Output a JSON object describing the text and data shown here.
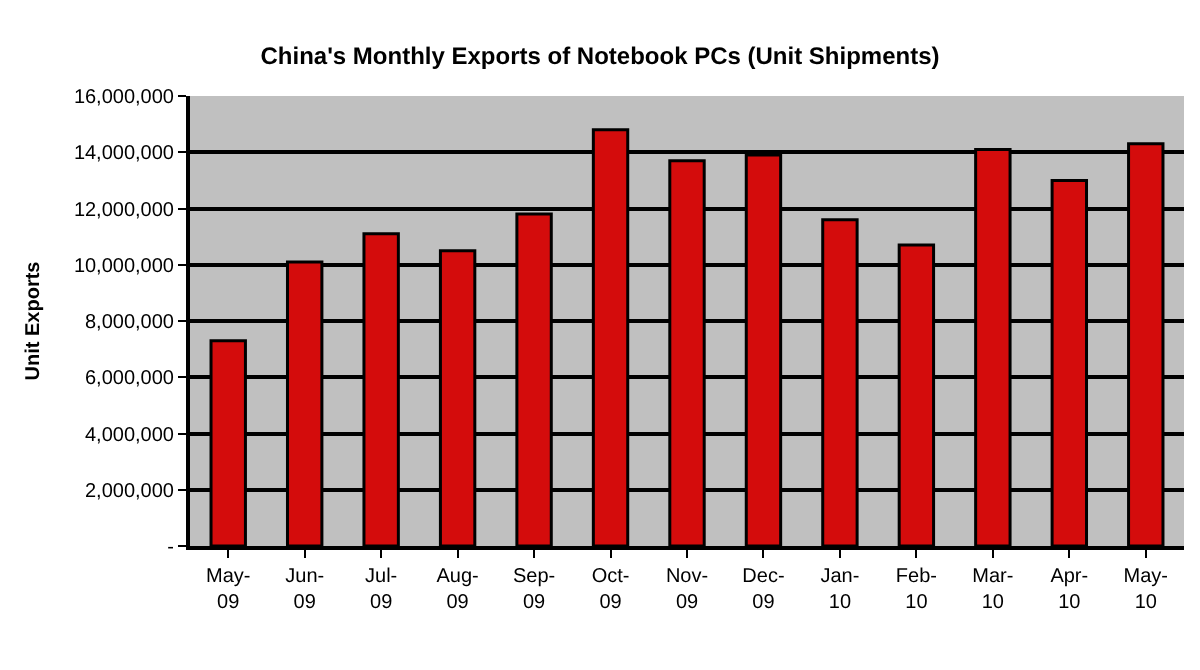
{
  "chart_data": {
    "type": "bar",
    "title": "China's Monthly Exports of Notebook PCs (Unit Shipments)",
    "ylabel": "Unit Exports",
    "categories": [
      "May-09",
      "Jun-09",
      "Jul-09",
      "Aug-09",
      "Sep-09",
      "Oct-09",
      "Nov-09",
      "Dec-09",
      "Jan-10",
      "Feb-10",
      "Mar-10",
      "Apr-10",
      "May-10"
    ],
    "series": [
      {
        "color": "#d40c0c",
        "values": [
          7300000,
          10100000,
          11100000,
          10500000,
          11800000,
          14800000,
          13700000,
          13900000,
          11600000,
          10700000,
          14100000,
          13000000,
          14300000
        ]
      }
    ],
    "ylim": [
      0,
      16000000
    ],
    "yticks": [
      {
        "value": 0,
        "label": "-"
      },
      {
        "value": 2000000,
        "label": "2,000,000"
      },
      {
        "value": 4000000,
        "label": "4,000,000"
      },
      {
        "value": 6000000,
        "label": "6,000,000"
      },
      {
        "value": 8000000,
        "label": "8,000,000"
      },
      {
        "value": 10000000,
        "label": "10,000,000"
      },
      {
        "value": 12000000,
        "label": "12,000,000"
      },
      {
        "value": 14000000,
        "label": "14,000,000"
      },
      {
        "value": 16000000,
        "label": "16,000,000"
      }
    ],
    "grid": "y",
    "legend": false
  }
}
